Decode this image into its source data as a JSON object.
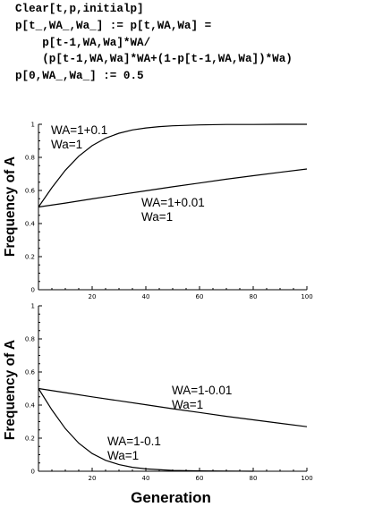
{
  "code": [
    "Clear[t,p,initialp]",
    "p[t_,WA_,Wa_] := p[t,WA,Wa] =",
    "    p[t-1,WA,Wa]*WA/",
    "    (p[t-1,WA,Wa]*WA+(1-p[t-1,WA,Wa])*Wa)",
    "p[0,WA_,Wa_] := 0.5"
  ],
  "chart_data": [
    {
      "type": "line",
      "ylabel": "Frequency of A",
      "xlabel": "",
      "xlim": [
        0,
        100
      ],
      "ylim": [
        0,
        1
      ],
      "xticks": [
        "20",
        "40",
        "60",
        "80",
        "100"
      ],
      "yticks": [
        "0",
        "0.2",
        "0.4",
        "0.6",
        "0.8",
        "1"
      ],
      "series": [
        {
          "name": "WA=1+0.1 Wa=1",
          "label_lines": [
            "WA=1+0.1",
            "Wa=1"
          ],
          "x": [
            0,
            5,
            10,
            15,
            20,
            25,
            30,
            35,
            40,
            45,
            50,
            60,
            70,
            80,
            90,
            100
          ],
          "y": [
            0.5,
            0.617,
            0.722,
            0.807,
            0.871,
            0.916,
            0.946,
            0.966,
            0.978,
            0.986,
            0.991,
            0.996,
            0.999,
            0.999,
            1.0,
            1.0
          ]
        },
        {
          "name": "WA=1+0.01 Wa=1",
          "label_lines": [
            "WA=1+0.01",
            "Wa=1"
          ],
          "x": [
            0,
            10,
            20,
            30,
            40,
            50,
            60,
            70,
            80,
            90,
            100
          ],
          "y": [
            0.5,
            0.524,
            0.549,
            0.574,
            0.598,
            0.622,
            0.645,
            0.668,
            0.689,
            0.71,
            0.73
          ]
        }
      ]
    },
    {
      "type": "line",
      "ylabel": "Frequency of A",
      "xlabel": "Generation",
      "xlim": [
        0,
        100
      ],
      "ylim": [
        0,
        1
      ],
      "xticks": [
        "20",
        "40",
        "60",
        "80",
        "100"
      ],
      "yticks": [
        "0",
        "0.2",
        "0.4",
        "0.6",
        "0.8",
        "1"
      ],
      "series": [
        {
          "name": "WA=1-0.01 Wa=1",
          "label_lines": [
            "WA=1-0.01",
            "Wa=1"
          ],
          "x": [
            0,
            10,
            20,
            30,
            40,
            50,
            60,
            70,
            80,
            90,
            100
          ],
          "y": [
            0.5,
            0.475,
            0.45,
            0.426,
            0.402,
            0.378,
            0.355,
            0.332,
            0.311,
            0.29,
            0.269
          ]
        },
        {
          "name": "WA=1-0.1 Wa=1",
          "label_lines": [
            "WA=1-0.1",
            "Wa=1"
          ],
          "x": [
            0,
            5,
            10,
            15,
            20,
            25,
            30,
            35,
            40,
            50,
            60,
            70,
            80
          ],
          "y": [
            0.5,
            0.371,
            0.258,
            0.17,
            0.107,
            0.066,
            0.04,
            0.024,
            0.014,
            0.005,
            0.002,
            0.001,
            0.0
          ]
        }
      ]
    }
  ]
}
